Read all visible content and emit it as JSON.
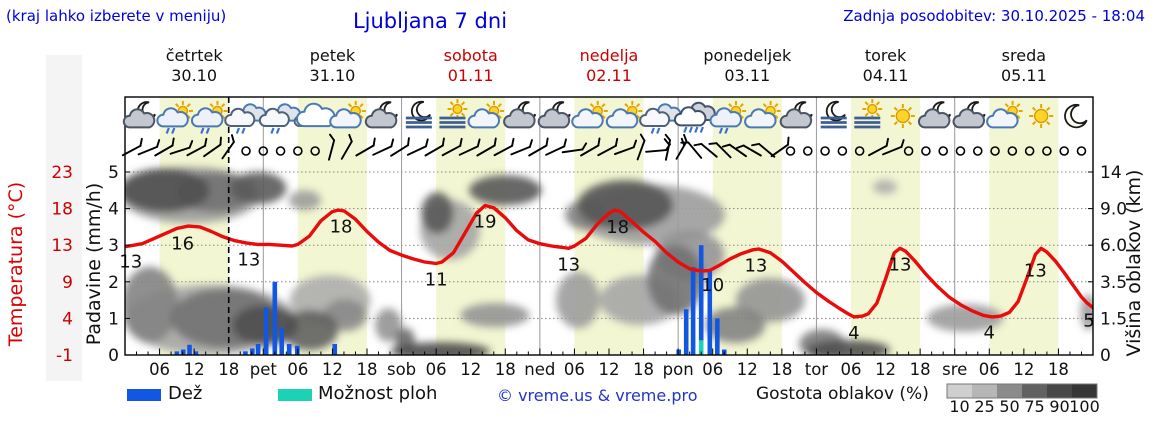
{
  "header": {
    "note": "(kraj lahko izberete v meniju)",
    "title": "Ljubljana 7 dni",
    "updated": "Zadnja posodobitev: 30.10.2025 - 18:04"
  },
  "days": [
    {
      "name": "četrtek",
      "date": "30.10",
      "red": false
    },
    {
      "name": "petek",
      "date": "31.10",
      "red": false
    },
    {
      "name": "sobota",
      "date": "01.11",
      "red": true
    },
    {
      "name": "nedelja",
      "date": "02.11",
      "red": true
    },
    {
      "name": "ponedeljek",
      "date": "03.11",
      "red": false
    },
    {
      "name": "torek",
      "date": "04.11",
      "red": false
    },
    {
      "name": "sreda",
      "date": "05.11",
      "red": false
    }
  ],
  "axes": {
    "temp_title": "Temperatura (°C)",
    "precip_title": "Padavine (mm/h)",
    "cloud_title": "Višina oblakov (km)",
    "temp_ticks": [
      "23",
      "18",
      "13",
      "9",
      "4",
      "-1"
    ],
    "precip_ticks": [
      "5",
      "4",
      "3",
      "2",
      "1",
      "0"
    ],
    "cloud_ticks": [
      "14",
      "9.0",
      "6.0",
      "3.5",
      "1.5",
      "0"
    ],
    "hour_labels": [
      "06",
      "12",
      "18"
    ],
    "day_abbrev": [
      "pet",
      "sob",
      "ned",
      "pon",
      "tor",
      "sre"
    ]
  },
  "legend": {
    "rain_label": "Dež",
    "showers_label": "Možnost ploh",
    "copyright": "© vreme.us & vreme.pro",
    "cloud_label": "Gostota oblakov (%)",
    "scale": [
      10,
      25,
      50,
      75,
      90,
      100
    ],
    "rain_color": "#1157e0",
    "showers_color": "#1bd3b4"
  },
  "colors": {
    "day_band": "#f3f6d2",
    "temp_line": "#e80c0c",
    "grid": "#888888",
    "day_line": "#999999",
    "accent_blue": "#0000dd",
    "accent_red": "#cc0000"
  },
  "icons": [
    "moon-cloud",
    "sun-cloud-rain",
    "sun-cloud-rain",
    "clouds-rain",
    "clouds-rain",
    "cloud",
    "sun-cloud",
    "moon-cloud",
    "moon-fog",
    "sun-fog",
    "sun-cloud",
    "moon-cloud",
    "moon-cloud",
    "sun-cloud",
    "sun-cloud",
    "clouds-rain",
    "clouds-heavy-rain",
    "sun-cloud-rain",
    "sun-cloud",
    "moon-cloud",
    "moon-fog",
    "sun-fog",
    "sun",
    "moon-cloud",
    "moon-cloud",
    "sun-cloud",
    "sun",
    "moon"
  ],
  "chart_data": {
    "type": "meteogram (line + bar + cloud density heatmap)",
    "time_axis": {
      "hours_total": 168,
      "start_day": "četrtek 00:00",
      "now_marker_hour": 18
    },
    "temp_axis_range_c": [
      -1,
      23
    ],
    "precip_axis_range_mm": [
      0,
      5
    ],
    "cloud_axis_km_levels": [
      0,
      1.5,
      3.5,
      6.0,
      9.0,
      14
    ],
    "temperature_series": [
      [
        0,
        13.2
      ],
      [
        3,
        13.6
      ],
      [
        6,
        14.6
      ],
      [
        9,
        15.6
      ],
      [
        11,
        15.9
      ],
      [
        13,
        15.8
      ],
      [
        15,
        15.2
      ],
      [
        17,
        14.5
      ],
      [
        19,
        14.0
      ],
      [
        21,
        13.7
      ],
      [
        23,
        13.5
      ],
      [
        25,
        13.5
      ],
      [
        27,
        13.4
      ],
      [
        29,
        13.3
      ],
      [
        30,
        13.5
      ],
      [
        32,
        14.6
      ],
      [
        34,
        16.6
      ],
      [
        36,
        17.8
      ],
      [
        37,
        18.0
      ],
      [
        38,
        17.9
      ],
      [
        40,
        16.8
      ],
      [
        42,
        15.2
      ],
      [
        44,
        13.8
      ],
      [
        46,
        12.7
      ],
      [
        48,
        12.1
      ],
      [
        50,
        11.6
      ],
      [
        52,
        11.2
      ],
      [
        54,
        11.0
      ],
      [
        55,
        11.2
      ],
      [
        57,
        12.4
      ],
      [
        59,
        15.0
      ],
      [
        61,
        17.6
      ],
      [
        62.5,
        18.6
      ],
      [
        64,
        18.3
      ],
      [
        66,
        17.0
      ],
      [
        68,
        15.3
      ],
      [
        70,
        14.1
      ],
      [
        72,
        13.6
      ],
      [
        74,
        13.3
      ],
      [
        76,
        13.1
      ],
      [
        77,
        13.0
      ],
      [
        78,
        13.3
      ],
      [
        80,
        14.3
      ],
      [
        82,
        16.2
      ],
      [
        84,
        17.6
      ],
      [
        85,
        18.0
      ],
      [
        86,
        17.8
      ],
      [
        88,
        16.5
      ],
      [
        90,
        15.1
      ],
      [
        92,
        13.9
      ],
      [
        94,
        12.4
      ],
      [
        96,
        11.2
      ],
      [
        98,
        10.3
      ],
      [
        100,
        10.0
      ],
      [
        101.5,
        10.1
      ],
      [
        103,
        10.7
      ],
      [
        105,
        11.6
      ],
      [
        107,
        12.3
      ],
      [
        109,
        12.8
      ],
      [
        110,
        12.9
      ],
      [
        112,
        12.4
      ],
      [
        114,
        11.3
      ],
      [
        116,
        9.9
      ],
      [
        118,
        8.5
      ],
      [
        120,
        7.2
      ],
      [
        122,
        6.1
      ],
      [
        124,
        5.1
      ],
      [
        125.5,
        4.4
      ],
      [
        126.5,
        4.0
      ],
      [
        128,
        4.1
      ],
      [
        129,
        4.4
      ],
      [
        130.5,
        5.8
      ],
      [
        132,
        9.0
      ],
      [
        133.5,
        12.4
      ],
      [
        134.5,
        13.0
      ],
      [
        135.5,
        12.6
      ],
      [
        137,
        11.4
      ],
      [
        139,
        9.6
      ],
      [
        141,
        8.0
      ],
      [
        143,
        6.6
      ],
      [
        145,
        5.6
      ],
      [
        147,
        4.8
      ],
      [
        149,
        4.2
      ],
      [
        150.5,
        4.0
      ],
      [
        152,
        4.1
      ],
      [
        153.5,
        4.6
      ],
      [
        155,
        6.0
      ],
      [
        156.5,
        9.0
      ],
      [
        158,
        12.2
      ],
      [
        159,
        13.0
      ],
      [
        160,
        12.5
      ],
      [
        161.5,
        11.3
      ],
      [
        163,
        9.8
      ],
      [
        164.5,
        8.2
      ],
      [
        166,
        6.6
      ],
      [
        167,
        5.8
      ],
      [
        168,
        5.2
      ]
    ],
    "temp_point_labels": [
      {
        "t": 1,
        "v": "13"
      },
      {
        "t": 10,
        "v": "16"
      },
      {
        "t": 21.5,
        "v": "13"
      },
      {
        "t": 37.5,
        "v": "18"
      },
      {
        "t": 54,
        "v": "11"
      },
      {
        "t": 62.5,
        "v": "19"
      },
      {
        "t": 77,
        "v": "13"
      },
      {
        "t": 85.5,
        "v": "18"
      },
      {
        "t": 102,
        "v": "10"
      },
      {
        "t": 109.5,
        "v": "13"
      },
      {
        "t": 126.5,
        "v": "4"
      },
      {
        "t": 134.5,
        "v": "13"
      },
      {
        "t": 150,
        "v": "4"
      },
      {
        "t": 158,
        "v": "13"
      },
      {
        "t": 167.3,
        "v": "5"
      }
    ],
    "precip_bars_mm": [
      {
        "t": 9,
        "h": 0.1
      },
      {
        "t": 10.1,
        "h": 0.15
      },
      {
        "t": 11.2,
        "h": 0.28
      },
      {
        "t": 12.3,
        "h": 0.1
      },
      {
        "t": 20.9,
        "h": 0.1
      },
      {
        "t": 22.1,
        "h": 0.18
      },
      {
        "t": 23.1,
        "h": 0.3
      },
      {
        "t": 24.5,
        "h": 1.3
      },
      {
        "t": 26.0,
        "h": 2.0
      },
      {
        "t": 27.2,
        "h": 0.75
      },
      {
        "t": 28.5,
        "h": 0.3
      },
      {
        "t": 29.9,
        "h": 0.25
      },
      {
        "t": 36.4,
        "h": 0.3
      },
      {
        "t": 96.1,
        "h": 0.15
      },
      {
        "t": 97.4,
        "h": 1.25
      },
      {
        "t": 98.6,
        "h": 2.4
      },
      {
        "t": 100.0,
        "h": 3.0,
        "c": 0.4
      },
      {
        "t": 101.5,
        "h": 2.35
      },
      {
        "t": 102.8,
        "h": 1.0
      },
      {
        "t": 104.0,
        "h": 0.15
      }
    ],
    "cloud_blobs": [
      {
        "t": 11.3,
        "l": 4.37,
        "rt": 12.2,
        "rl": 0.77,
        "d": 40
      },
      {
        "t": 6.9,
        "l": 4.5,
        "rt": 7.8,
        "rl": 0.6,
        "d": 85
      },
      {
        "t": 15.6,
        "l": 4.45,
        "rt": 6.9,
        "rl": 0.55,
        "d": 65
      },
      {
        "t": 23.1,
        "l": 4.56,
        "rt": 4.9,
        "rl": 0.44,
        "d": 78
      },
      {
        "t": 31.2,
        "l": 4.23,
        "rt": 2.8,
        "rl": 0.27,
        "d": 40
      },
      {
        "t": 14.8,
        "l": 0.96,
        "rt": 14.8,
        "rl": 0.96,
        "d": 35
      },
      {
        "t": 4.3,
        "l": 1.37,
        "rt": 4.9,
        "rl": 1.04,
        "d": 55
      },
      {
        "t": 17.4,
        "l": 1.01,
        "rt": 9.5,
        "rl": 0.82,
        "d": 65
      },
      {
        "t": 24.3,
        "l": 0.82,
        "rt": 5.7,
        "rl": 0.55,
        "d": 85
      },
      {
        "t": 32.1,
        "l": 0.68,
        "rt": 4.9,
        "rl": 0.55,
        "d": 75
      },
      {
        "t": 38.2,
        "l": 1.09,
        "rt": 3.8,
        "rl": 0.44,
        "d": 50
      },
      {
        "t": 35.6,
        "l": 1.5,
        "rt": 7,
        "rl": 0.68,
        "d": 30
      },
      {
        "t": 45.7,
        "l": 0.82,
        "rt": 2.3,
        "rl": 0.46,
        "d": 45
      },
      {
        "t": 48.6,
        "l": 0.41,
        "rt": 1.7,
        "rl": 0.33,
        "d": 70
      },
      {
        "t": 54.2,
        "l": 3.88,
        "rt": 2.8,
        "rl": 0.57,
        "d": 80
      },
      {
        "t": 56.4,
        "l": 3.42,
        "rt": 5.2,
        "rl": 0.82,
        "d": 35
      },
      {
        "t": 54.7,
        "l": 0.1,
        "rt": 8.7,
        "rl": 0.25,
        "d": 88
      },
      {
        "t": 66,
        "l": 4.5,
        "rt": 6.3,
        "rl": 0.41,
        "d": 80
      },
      {
        "t": 64.2,
        "l": 1.09,
        "rt": 6,
        "rl": 0.33,
        "d": 45
      },
      {
        "t": 79.9,
        "l": 3.83,
        "rt": 3.5,
        "rl": 0.41,
        "d": 55
      },
      {
        "t": 86.8,
        "l": 4.1,
        "rt": 8.3,
        "rl": 0.68,
        "d": 82
      },
      {
        "t": 91.1,
        "l": 3.83,
        "rt": 13,
        "rl": 0.82,
        "d": 40
      },
      {
        "t": 78.6,
        "l": 1.5,
        "rt": 3.8,
        "rl": 0.77,
        "d": 40
      },
      {
        "t": 89.4,
        "l": 1.5,
        "rt": 7,
        "rl": 0.68,
        "d": 35
      },
      {
        "t": 95.5,
        "l": 2.05,
        "rt": 4.9,
        "rl": 0.96,
        "d": 65
      },
      {
        "t": 98,
        "l": 2.73,
        "rt": 6,
        "rl": 0.68,
        "d": 45
      },
      {
        "t": 105.9,
        "l": 0.82,
        "rt": 5.2,
        "rl": 0.49,
        "d": 55
      },
      {
        "t": 112,
        "l": 1.5,
        "rt": 6,
        "rl": 0.6,
        "d": 45
      },
      {
        "t": 125.5,
        "l": 0.14,
        "rt": 7.3,
        "rl": 0.27,
        "d": 85
      },
      {
        "t": 121,
        "l": 0.3,
        "rt": 4,
        "rl": 0.4,
        "d": 60
      },
      {
        "t": 131.9,
        "l": 4.59,
        "rt": 2.1,
        "rl": 0.19,
        "d": 30
      },
      {
        "t": 145.8,
        "l": 1.01,
        "rt": 6.6,
        "rl": 0.38,
        "d": 40
      },
      {
        "t": 167.2,
        "l": 1.17,
        "rt": 1.4,
        "rl": 0.49,
        "d": 40
      }
    ],
    "wind": [
      {
        "t": 1,
        "k": "b",
        "a": -28
      },
      {
        "t": 3.8,
        "k": "b",
        "a": -22
      },
      {
        "t": 6.6,
        "k": "b",
        "a": -30
      },
      {
        "t": 9.4,
        "k": "b",
        "a": -18
      },
      {
        "t": 12.2,
        "k": "b",
        "a": -28
      },
      {
        "t": 15,
        "k": "b",
        "a": -35
      },
      {
        "t": 17.8,
        "k": "b",
        "a": -55
      },
      {
        "t": 21,
        "k": "o",
        "a": 0
      },
      {
        "t": 24,
        "k": "o",
        "a": 0
      },
      {
        "t": 27,
        "k": "o",
        "a": 0
      },
      {
        "t": 30,
        "k": "o",
        "a": 0
      },
      {
        "t": 33,
        "k": "o",
        "a": 0
      },
      {
        "t": 35.8,
        "k": "b",
        "a": -75
      },
      {
        "t": 38.4,
        "k": "b",
        "a": -60
      },
      {
        "t": 41.5,
        "k": "b",
        "a": -30
      },
      {
        "t": 44.5,
        "k": "b",
        "a": -25
      },
      {
        "t": 47.5,
        "k": "b",
        "a": -32
      },
      {
        "t": 50.5,
        "k": "b",
        "a": -25
      },
      {
        "t": 53.5,
        "k": "b",
        "a": -30
      },
      {
        "t": 56.5,
        "k": "b",
        "a": -28
      },
      {
        "t": 59.5,
        "k": "b",
        "a": -25
      },
      {
        "t": 62.5,
        "k": "b",
        "a": -30
      },
      {
        "t": 65.5,
        "k": "b",
        "a": -28
      },
      {
        "t": 68.5,
        "k": "b",
        "a": -22
      },
      {
        "t": 71.5,
        "k": "b",
        "a": -30
      },
      {
        "t": 74.5,
        "k": "b",
        "a": -25
      },
      {
        "t": 77.5,
        "k": "b",
        "a": -8
      },
      {
        "t": 80.5,
        "k": "b",
        "a": -30
      },
      {
        "t": 83.5,
        "k": "b",
        "a": -28
      },
      {
        "t": 86.5,
        "k": "b",
        "a": -20
      },
      {
        "t": 89.5,
        "k": "b",
        "a": -70
      },
      {
        "t": 92,
        "k": "b",
        "a": -5
      },
      {
        "t": 94.2,
        "k": "B",
        "a": -78
      },
      {
        "t": 96.5,
        "k": "B",
        "a": -60
      },
      {
        "t": 99,
        "k": "b",
        "a": -130
      },
      {
        "t": 101.5,
        "k": "b",
        "a": -140
      },
      {
        "t": 104,
        "k": "b",
        "a": -135
      },
      {
        "t": 106.5,
        "k": "b",
        "a": -145
      },
      {
        "t": 109,
        "k": "b",
        "a": -150
      },
      {
        "t": 111.5,
        "k": "b",
        "a": -140
      },
      {
        "t": 113.5,
        "k": "b",
        "a": -35
      },
      {
        "t": 115.5,
        "k": "o",
        "a": 0
      },
      {
        "t": 118.5,
        "k": "o",
        "a": 0
      },
      {
        "t": 121.5,
        "k": "o",
        "a": 0
      },
      {
        "t": 124.5,
        "k": "o",
        "a": 0
      },
      {
        "t": 127.5,
        "k": "o",
        "a": 0
      },
      {
        "t": 130.5,
        "k": "b",
        "a": -28
      },
      {
        "t": 133,
        "k": "b",
        "a": -22
      },
      {
        "t": 136,
        "k": "o",
        "a": 0
      },
      {
        "t": 139,
        "k": "o",
        "a": 0
      },
      {
        "t": 142,
        "k": "o",
        "a": 0
      },
      {
        "t": 145,
        "k": "o",
        "a": 0
      },
      {
        "t": 148,
        "k": "o",
        "a": 0
      },
      {
        "t": 151,
        "k": "o",
        "a": 0
      },
      {
        "t": 154,
        "k": "o",
        "a": 0
      },
      {
        "t": 157,
        "k": "o",
        "a": 0
      },
      {
        "t": 160,
        "k": "o",
        "a": 0
      },
      {
        "t": 163,
        "k": "o",
        "a": 0
      },
      {
        "t": 166,
        "k": "o",
        "a": 0
      }
    ]
  }
}
